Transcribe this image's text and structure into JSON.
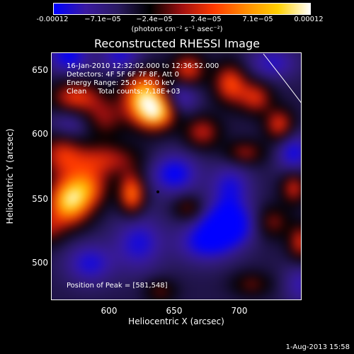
{
  "chart_data": {
    "type": "heatmap",
    "title": "Reconstructed RHESSI Image",
    "xlabel": "Heliocentric X (arcsec)",
    "ylabel": "Heliocentric Y (arcsec)",
    "xlim": [
      557,
      746
    ],
    "ylim": [
      473,
      663
    ],
    "xticks": [
      "600",
      "650",
      "700"
    ],
    "yticks": [
      "650",
      "600",
      "550",
      "500"
    ],
    "colorbar": {
      "ticks": [
        "-0.00012",
        "−7.1e−05",
        "−2.4e−05",
        "2.4e−05",
        "7.1e−05",
        "0.00012"
      ],
      "unit": "(photons cm⁻² s⁻¹ asec⁻²)",
      "range": [
        -0.00012,
        0.00012
      ]
    },
    "peak_position": [
      581,
      548
    ],
    "blobs": [
      {
        "x": 629,
        "y": 625,
        "v": 1.0,
        "sx": 10,
        "sy": 12
      },
      {
        "x": 638,
        "y": 614,
        "v": 0.8,
        "sx": 9,
        "sy": 8
      },
      {
        "x": 575,
        "y": 549,
        "v": 0.95,
        "sx": 10,
        "sy": 11
      },
      {
        "x": 588,
        "y": 560,
        "v": 0.6,
        "sx": 10,
        "sy": 10
      },
      {
        "x": 620,
        "y": 555,
        "v": 0.75,
        "sx": 6,
        "sy": 10
      },
      {
        "x": 600,
        "y": 580,
        "v": 0.45,
        "sx": 18,
        "sy": 8
      },
      {
        "x": 570,
        "y": 585,
        "v": 0.45,
        "sx": 10,
        "sy": 12
      },
      {
        "x": 580,
        "y": 625,
        "v": 0.55,
        "sx": 12,
        "sy": 8
      },
      {
        "x": 600,
        "y": 610,
        "v": 0.35,
        "sx": 10,
        "sy": 10
      },
      {
        "x": 660,
        "y": 645,
        "v": 0.55,
        "sx": 8,
        "sy": 8
      },
      {
        "x": 690,
        "y": 635,
        "v": 0.6,
        "sx": 8,
        "sy": 10
      },
      {
        "x": 708,
        "y": 625,
        "v": 0.5,
        "sx": 8,
        "sy": 8
      },
      {
        "x": 725,
        "y": 605,
        "v": 0.55,
        "sx": 7,
        "sy": 8
      },
      {
        "x": 670,
        "y": 600,
        "v": 0.45,
        "sx": 9,
        "sy": 8
      },
      {
        "x": 700,
        "y": 585,
        "v": 0.4,
        "sx": 10,
        "sy": 6
      },
      {
        "x": 735,
        "y": 560,
        "v": 0.5,
        "sx": 6,
        "sy": 8
      },
      {
        "x": 740,
        "y": 520,
        "v": 0.5,
        "sx": 6,
        "sy": 9
      },
      {
        "x": 720,
        "y": 535,
        "v": 0.35,
        "sx": 8,
        "sy": 8
      },
      {
        "x": 660,
        "y": 545,
        "v": 0.35,
        "sx": 7,
        "sy": 6
      },
      {
        "x": 560,
        "y": 530,
        "v": 0.35,
        "sx": 8,
        "sy": 8
      },
      {
        "x": 640,
        "y": 485,
        "v": 0.3,
        "sx": 8,
        "sy": 6
      },
      {
        "x": 705,
        "y": 490,
        "v": 0.3,
        "sx": 10,
        "sy": 6
      },
      {
        "x": 688,
        "y": 533,
        "v": -0.8,
        "sx": 12,
        "sy": 10
      },
      {
        "x": 672,
        "y": 520,
        "v": -0.5,
        "sx": 14,
        "sy": 10
      },
      {
        "x": 650,
        "y": 570,
        "v": -0.55,
        "sx": 12,
        "sy": 10
      },
      {
        "x": 690,
        "y": 560,
        "v": -0.45,
        "sx": 10,
        "sy": 12
      },
      {
        "x": 625,
        "y": 520,
        "v": -0.45,
        "sx": 12,
        "sy": 14
      },
      {
        "x": 590,
        "y": 505,
        "v": -0.45,
        "sx": 12,
        "sy": 10
      },
      {
        "x": 575,
        "y": 655,
        "v": -0.55,
        "sx": 10,
        "sy": 8
      },
      {
        "x": 612,
        "y": 655,
        "v": -0.45,
        "sx": 10,
        "sy": 8
      },
      {
        "x": 720,
        "y": 650,
        "v": -0.4,
        "sx": 12,
        "sy": 8
      },
      {
        "x": 735,
        "y": 585,
        "v": -0.5,
        "sx": 8,
        "sy": 10
      },
      {
        "x": 575,
        "y": 605,
        "v": -0.35,
        "sx": 10,
        "sy": 8
      },
      {
        "x": 655,
        "y": 625,
        "v": -0.4,
        "sx": 8,
        "sy": 8
      },
      {
        "x": 740,
        "y": 490,
        "v": -0.35,
        "sx": 8,
        "sy": 10
      }
    ]
  },
  "info": {
    "time_range": "16-Jan-2010 12:32:02.000 to 12:36:52.000",
    "detectors": "Detectors: 4F 5F 6F 7F 8F, Att 0",
    "energy": "Energy Range: 25.0 - 50.0 keV",
    "clean": "Clean     Total counts: 7.18E+03"
  },
  "peak_label": "Position of Peak = [581,548]",
  "date_stamp": "1-Aug-2013 15:58",
  "colors": {
    "background": "#000000",
    "colormap_negative": [
      "#0000ff",
      "#3a1aa0",
      "#2a1a60",
      "#000000"
    ],
    "colormap_positive": [
      "#000000",
      "#a01010",
      "#ff3a00",
      "#ff8c00",
      "#ffd000",
      "#ffffff"
    ]
  }
}
